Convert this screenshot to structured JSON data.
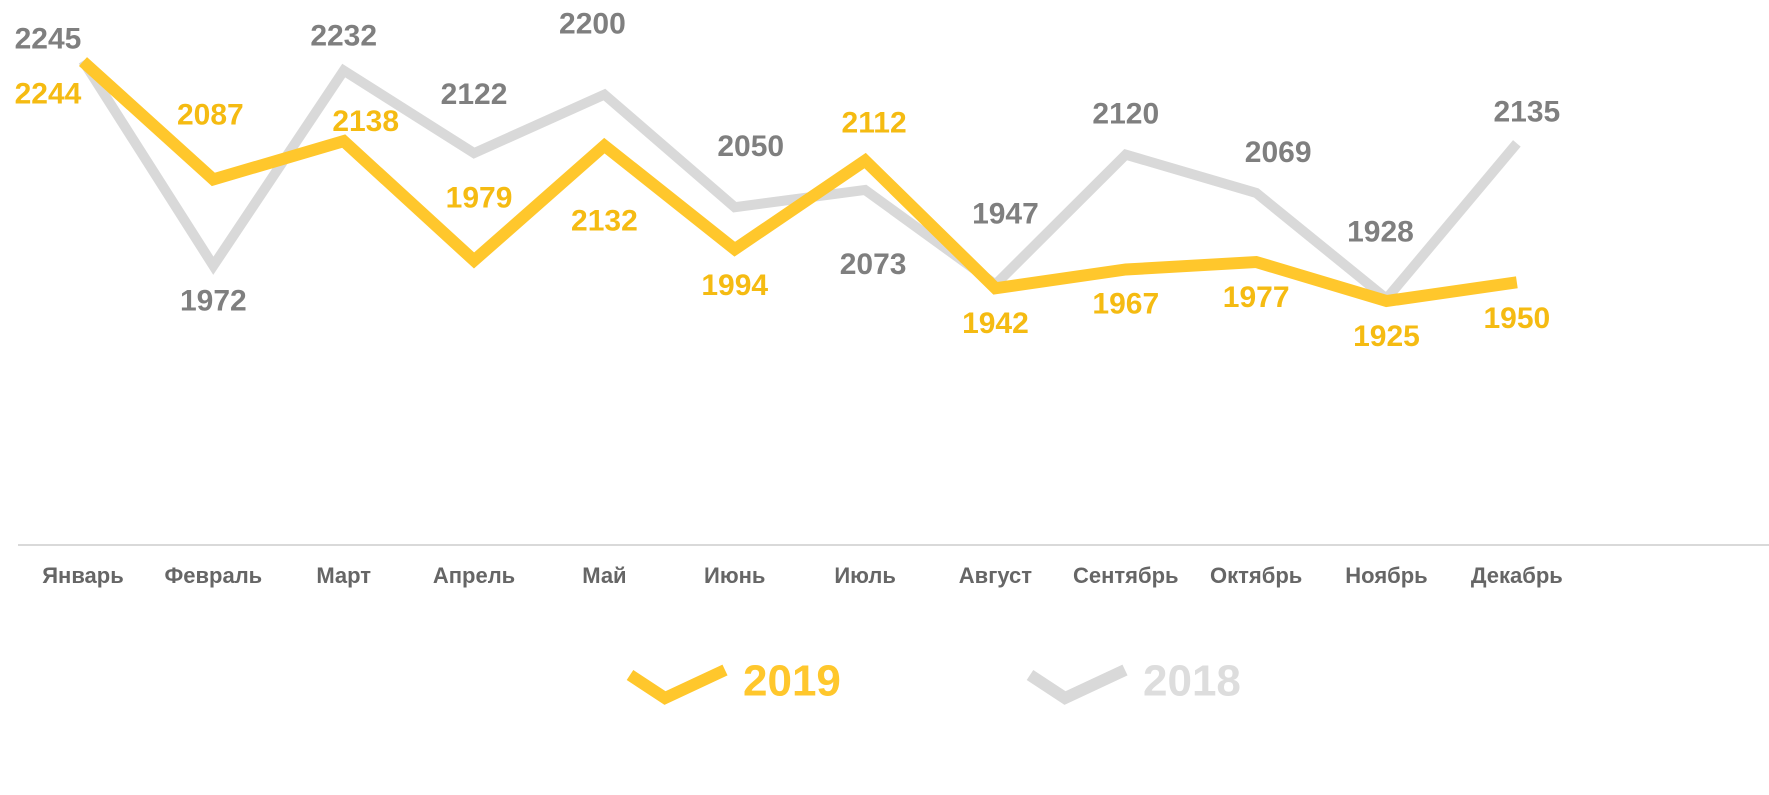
{
  "chart_data": {
    "type": "line",
    "categories": [
      "Январь",
      "Февраль",
      "Март",
      "Апрель",
      "Май",
      "Июнь",
      "Июль",
      "Август",
      "Сентябрь",
      "Октябрь",
      "Ноябрь",
      "Декабрь"
    ],
    "series": [
      {
        "name": "2018",
        "color": "#d9d9d9",
        "label_color": "#7f7f7f",
        "values": [
          2245,
          1972,
          2232,
          2122,
          2200,
          2050,
          2073,
          1947,
          2120,
          2069,
          1928,
          2135
        ]
      },
      {
        "name": "2019",
        "color": "#ffc72c",
        "label_color": "#f5bb12",
        "values": [
          2244,
          2087,
          2138,
          1979,
          2132,
          1994,
          2112,
          1942,
          1967,
          1977,
          1925,
          1950
        ]
      }
    ],
    "ylim": [
      1600,
      2330
    ],
    "legend": "bottom"
  }
}
